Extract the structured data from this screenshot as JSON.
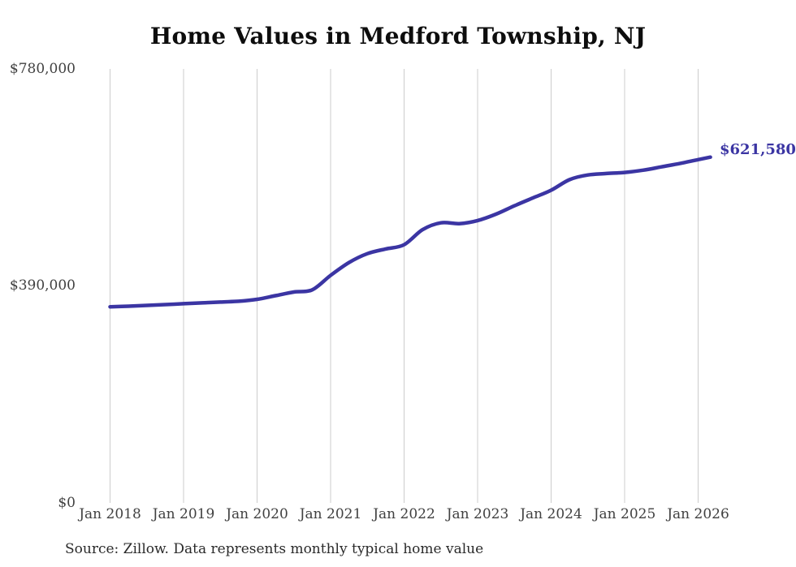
{
  "chart": {
    "title": "Home Values in Medford Township, NJ",
    "end_label": "$621,580",
    "source_note": "Source: Zillow. Data represents monthly typical home value",
    "colors": {
      "line": "#3b35a3",
      "end_label": "#3b35a3",
      "gridline": "#cccccc",
      "title": "#0d0d0d",
      "axis_label": "#414141",
      "source": "#2a2a2a",
      "background": "#ffffff"
    }
  },
  "chart_data": {
    "type": "line",
    "title": "Home Values in Medford Township, NJ",
    "series_name": "Typical home value (monthly)",
    "x": [
      "2018-01",
      "2018-04",
      "2018-07",
      "2018-10",
      "2019-01",
      "2019-04",
      "2019-07",
      "2019-10",
      "2020-01",
      "2020-04",
      "2020-07",
      "2020-10",
      "2021-01",
      "2021-04",
      "2021-07",
      "2021-10",
      "2022-01",
      "2022-04",
      "2022-07",
      "2022-10",
      "2023-01",
      "2023-04",
      "2023-07",
      "2023-10",
      "2024-01",
      "2024-04",
      "2024-07",
      "2024-10",
      "2025-01",
      "2025-04",
      "2025-07",
      "2025-10",
      "2026-01",
      "2026-03"
    ],
    "values": [
      352500,
      353500,
      355000,
      356500,
      358000,
      359500,
      361000,
      362500,
      366000,
      372500,
      379000,
      383000,
      409000,
      432000,
      448000,
      456500,
      464000,
      491000,
      503500,
      502000,
      507500,
      519000,
      534000,
      548000,
      562000,
      581000,
      589500,
      592000,
      594000,
      598000,
      604000,
      610000,
      617000,
      621580
    ],
    "x_tick_labels": [
      "Jan 2018",
      "Jan 2019",
      "Jan 2020",
      "Jan 2021",
      "Jan 2022",
      "Jan 2023",
      "Jan 2024",
      "Jan 2025",
      "Jan 2026"
    ],
    "y_ticks": [
      {
        "value": 0,
        "label": "$0"
      },
      {
        "value": 390000,
        "label": "$390,000"
      },
      {
        "value": 780000,
        "label": "$780,000"
      }
    ],
    "ylim": [
      0,
      780000
    ],
    "grid": "vertical-only",
    "legend": "none",
    "final_value": 621580,
    "final_value_label": "$621,580",
    "source": "Source: Zillow. Data represents monthly typical home value"
  }
}
